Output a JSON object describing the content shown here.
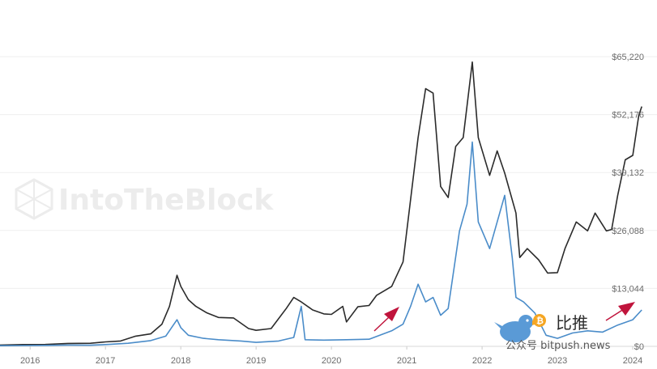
{
  "chart_data": {
    "type": "line",
    "title": "",
    "xlabel": "",
    "ylabel": "",
    "x_tick_labels": [
      "2016",
      "2017",
      "2018",
      "2019",
      "2020",
      "2021",
      "2022",
      "2023",
      "2024"
    ],
    "y_tick_labels": [
      "$65,220",
      "$52,176",
      "$39,132",
      "$26,088",
      "$13,044",
      "$0"
    ],
    "y_ticks": [
      65220,
      52176,
      39132,
      26088,
      13044,
      0
    ],
    "ylim": [
      0,
      65220
    ],
    "x_range": [
      2015.6,
      2024.15
    ],
    "grid": "horizontal",
    "series": [
      {
        "name": "",
        "color": "#2b2b2b",
        "points": [
          [
            2015.6,
            300
          ],
          [
            2015.9,
            400
          ],
          [
            2016.2,
            420
          ],
          [
            2016.5,
            650
          ],
          [
            2016.8,
            700
          ],
          [
            2017.0,
            1000
          ],
          [
            2017.2,
            1200
          ],
          [
            2017.4,
            2300
          ],
          [
            2017.6,
            2800
          ],
          [
            2017.75,
            5000
          ],
          [
            2017.85,
            9000
          ],
          [
            2017.95,
            16000
          ],
          [
            2018.0,
            13500
          ],
          [
            2018.1,
            10500
          ],
          [
            2018.2,
            9000
          ],
          [
            2018.35,
            7500
          ],
          [
            2018.5,
            6500
          ],
          [
            2018.7,
            6400
          ],
          [
            2018.9,
            4000
          ],
          [
            2019.0,
            3600
          ],
          [
            2019.2,
            4000
          ],
          [
            2019.4,
            8500
          ],
          [
            2019.5,
            11000
          ],
          [
            2019.6,
            10000
          ],
          [
            2019.75,
            8200
          ],
          [
            2019.9,
            7300
          ],
          [
            2020.0,
            7200
          ],
          [
            2020.15,
            9000
          ],
          [
            2020.2,
            5500
          ],
          [
            2020.35,
            8900
          ],
          [
            2020.5,
            9200
          ],
          [
            2020.6,
            11500
          ],
          [
            2020.8,
            13500
          ],
          [
            2020.95,
            19000
          ],
          [
            2021.05,
            33000
          ],
          [
            2021.15,
            47000
          ],
          [
            2021.25,
            58000
          ],
          [
            2021.35,
            57000
          ],
          [
            2021.45,
            36000
          ],
          [
            2021.55,
            33500
          ],
          [
            2021.65,
            45000
          ],
          [
            2021.75,
            47000
          ],
          [
            2021.87,
            64000
          ],
          [
            2021.95,
            47000
          ],
          [
            2022.1,
            38500
          ],
          [
            2022.2,
            44000
          ],
          [
            2022.3,
            39000
          ],
          [
            2022.45,
            30000
          ],
          [
            2022.5,
            20000
          ],
          [
            2022.6,
            22000
          ],
          [
            2022.75,
            19500
          ],
          [
            2022.87,
            16500
          ],
          [
            2023.0,
            16600
          ],
          [
            2023.1,
            22000
          ],
          [
            2023.25,
            28000
          ],
          [
            2023.4,
            26000
          ],
          [
            2023.5,
            30000
          ],
          [
            2023.65,
            26000
          ],
          [
            2023.72,
            26300
          ],
          [
            2023.8,
            34000
          ],
          [
            2023.9,
            42000
          ],
          [
            2024.0,
            43000
          ],
          [
            2024.08,
            52000
          ],
          [
            2024.12,
            54000
          ]
        ]
      },
      {
        "name": "",
        "color": "#4a8cc9",
        "points": [
          [
            2015.6,
            150
          ],
          [
            2015.9,
            180
          ],
          [
            2016.2,
            220
          ],
          [
            2016.5,
            300
          ],
          [
            2016.8,
            250
          ],
          [
            2017.0,
            400
          ],
          [
            2017.3,
            700
          ],
          [
            2017.6,
            1300
          ],
          [
            2017.8,
            2300
          ],
          [
            2017.95,
            6000
          ],
          [
            2018.0,
            4200
          ],
          [
            2018.1,
            2500
          ],
          [
            2018.3,
            1800
          ],
          [
            2018.5,
            1500
          ],
          [
            2018.8,
            1200
          ],
          [
            2019.0,
            900
          ],
          [
            2019.3,
            1200
          ],
          [
            2019.5,
            2000
          ],
          [
            2019.6,
            9000
          ],
          [
            2019.65,
            1500
          ],
          [
            2019.9,
            1400
          ],
          [
            2020.2,
            1500
          ],
          [
            2020.5,
            1600
          ],
          [
            2020.8,
            3500
          ],
          [
            2020.95,
            5000
          ],
          [
            2021.05,
            9000
          ],
          [
            2021.15,
            14000
          ],
          [
            2021.25,
            10000
          ],
          [
            2021.35,
            11000
          ],
          [
            2021.45,
            7000
          ],
          [
            2021.55,
            8500
          ],
          [
            2021.7,
            26000
          ],
          [
            2021.8,
            32000
          ],
          [
            2021.87,
            46000
          ],
          [
            2021.95,
            28000
          ],
          [
            2022.1,
            22000
          ],
          [
            2022.2,
            28000
          ],
          [
            2022.3,
            34000
          ],
          [
            2022.4,
            20000
          ],
          [
            2022.45,
            11000
          ],
          [
            2022.55,
            10000
          ],
          [
            2022.7,
            7500
          ],
          [
            2022.85,
            2500
          ],
          [
            2023.0,
            1800
          ],
          [
            2023.2,
            3000
          ],
          [
            2023.4,
            3500
          ],
          [
            2023.6,
            3200
          ],
          [
            2023.8,
            4800
          ],
          [
            2024.0,
            6000
          ],
          [
            2024.12,
            8200
          ]
        ]
      }
    ]
  },
  "watermark": {
    "text": "IntoTheBlock",
    "icon": "cube-lattice-icon"
  },
  "source_badge": {
    "cn_name": "比推",
    "small_text": "公众号 bitpush.news",
    "icon": "bird-icon",
    "coin_icon": "bitcoin-icon",
    "bird_color": "#5a9ad6",
    "coin_color": "#f5a623"
  },
  "annotations": [
    {
      "kind": "arrow",
      "color": "#c0143c"
    },
    {
      "kind": "arrow",
      "color": "#c0143c"
    }
  ]
}
